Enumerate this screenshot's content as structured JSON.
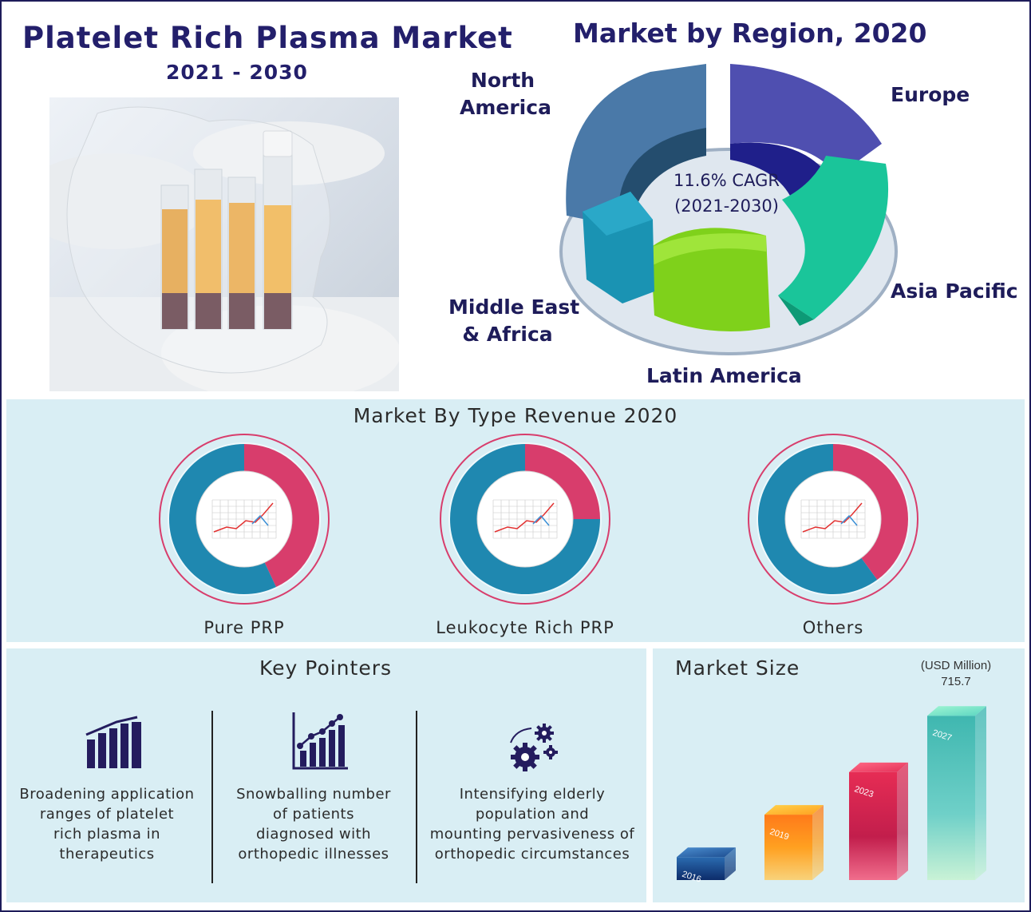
{
  "header": {
    "title": "Platelet Rich Plasma Market",
    "years": "2021 - 2030"
  },
  "region_chart": {
    "title": "Market by Region, 2020",
    "cagr_line1": "11.6% CAGR",
    "cagr_line2": "(2021-2030)",
    "labels": {
      "north_america_1": "North",
      "north_america_2": "America",
      "europe": "Europe",
      "asia_pacific": "Asia Pacific",
      "latin_america": "Latin America",
      "mea_1": "Middle East",
      "mea_2": "& Africa"
    },
    "colors": {
      "north_america": "#3f6f9e",
      "europe": "#2f2f9c",
      "asia_pacific": "#12b98c",
      "latin_america": "#88d91a",
      "mea": "#1a93b3"
    }
  },
  "type_section": {
    "title": "Market By Type Revenue 2020",
    "labels": {
      "pure": "Pure PRP",
      "leukocyte": "Leukocyte Rich PRP",
      "others": "Others"
    },
    "colors": {
      "pink": "#d83d6c",
      "blue": "#1f88b0"
    }
  },
  "key_pointers": {
    "title": "Key Pointers",
    "items": {
      "a": {
        "line1": "Broadening application",
        "line2": "ranges of platelet",
        "line3": "rich plasma in",
        "line4": "therapeutics",
        "icon": "bar-chart-icon"
      },
      "b": {
        "line1": "Snowballing number",
        "line2": "of patients",
        "line3": "diagnosed with",
        "line4": "orthopedic illnesses",
        "icon": "growth-chart-icon"
      },
      "c": {
        "line1": "Intensifying elderly",
        "line2": "population and",
        "line3": "mounting pervasiveness of",
        "line4": "orthopedic circumstances",
        "icon": "gears-icon"
      }
    }
  },
  "market_size": {
    "title": "Market Size",
    "unit": "(USD Million)",
    "value_label": "715.7"
  },
  "chart_data": [
    {
      "type": "pie",
      "title": "Market by Region, 2020",
      "categories": [
        "North America",
        "Europe",
        "Asia Pacific",
        "Latin America",
        "Middle East & Africa"
      ],
      "annotation": "11.6% CAGR (2021-2030)"
    },
    {
      "type": "pie",
      "title": "Market By Type Revenue 2020",
      "donuts": [
        {
          "label": "Pure PRP",
          "highlight_share": 0.43
        },
        {
          "label": "Leukocyte Rich PRP",
          "highlight_share": 0.25
        },
        {
          "label": "Others",
          "highlight_share": 0.4
        }
      ]
    },
    {
      "type": "bar",
      "title": "Market Size",
      "ylabel": "(USD Million)",
      "categories": [
        "2016",
        "2019",
        "2023",
        "2027"
      ],
      "values": [
        100,
        285,
        470,
        715.7
      ],
      "data_labels": [
        "",
        "",
        "",
        "715.7"
      ],
      "ylim": [
        0,
        800
      ]
    }
  ]
}
